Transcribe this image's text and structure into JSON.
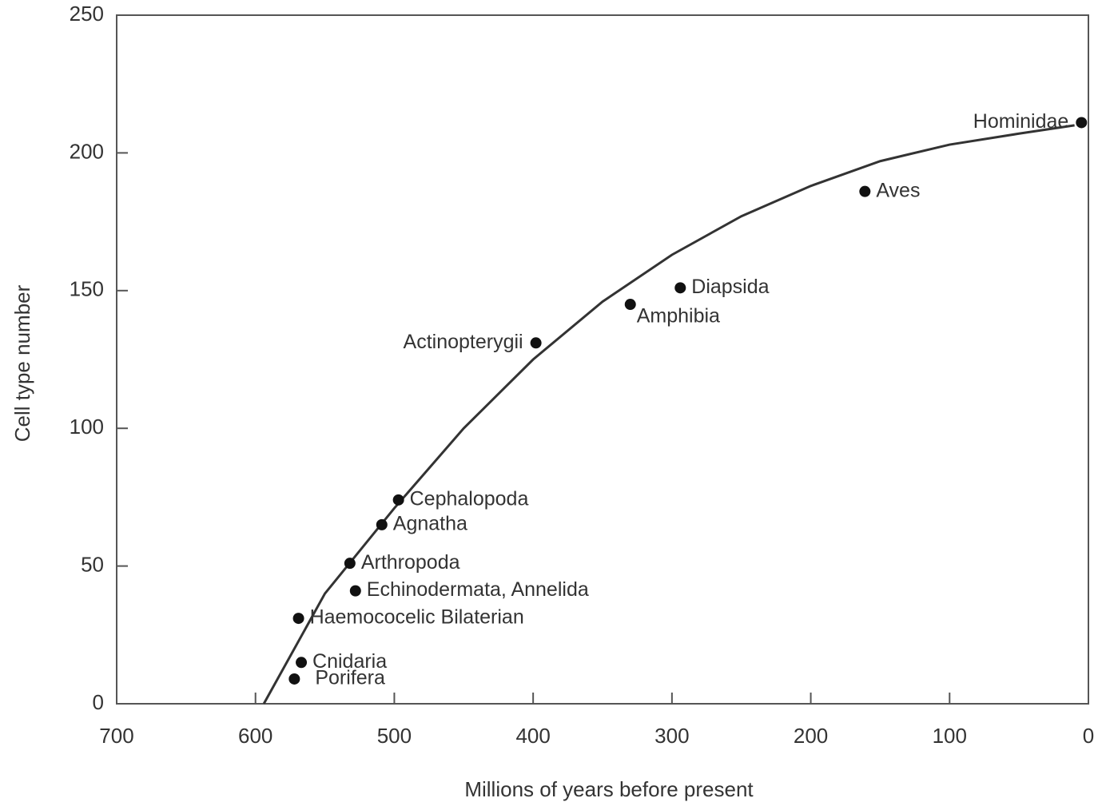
{
  "chart_data": {
    "type": "scatter",
    "xlabel": "Millions of years before present",
    "ylabel": "Cell type number",
    "xlim": [
      700,
      0
    ],
    "ylim": [
      0,
      250
    ],
    "xticks": [
      700,
      600,
      500,
      400,
      300,
      200,
      100,
      0
    ],
    "yticks": [
      0,
      50,
      100,
      150,
      200,
      250
    ],
    "color": "#111111",
    "point_labels": [
      "Porifera",
      "Cnidaria",
      "Haemococelic Bilaterian",
      "Echinodermata, Annelida",
      "Arthropoda",
      "Agnatha",
      "Cephalopoda",
      "Actinopterygii",
      "Amphibia",
      "Diapsida",
      "Aves",
      "Hominidae"
    ],
    "x": [
      572,
      567,
      569,
      528,
      532,
      509,
      497,
      398,
      330,
      294,
      161,
      5
    ],
    "values": [
      9,
      15,
      31,
      41,
      51,
      65,
      74,
      131,
      145,
      151,
      186,
      211
    ],
    "fit": {
      "x": [
        594,
        550,
        500,
        450,
        400,
        350,
        300,
        250,
        200,
        150,
        100,
        50,
        10
      ],
      "values": [
        0,
        40,
        71,
        100,
        125,
        146,
        163,
        177,
        188,
        197,
        203,
        207,
        210
      ]
    }
  }
}
